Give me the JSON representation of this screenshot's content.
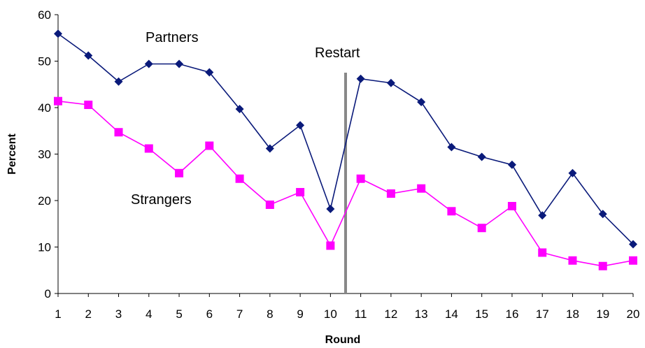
{
  "chart_data": {
    "type": "line",
    "xlabel": "Round",
    "ylabel": "Percent",
    "ylim": [
      0,
      60
    ],
    "y_ticks": [
      0,
      10,
      20,
      30,
      40,
      50,
      60
    ],
    "grid": false,
    "x": [
      1,
      2,
      3,
      4,
      5,
      6,
      7,
      8,
      9,
      10,
      11,
      12,
      13,
      14,
      15,
      16,
      17,
      18,
      19,
      20
    ],
    "series": [
      {
        "name": "Partners",
        "color": "#0a1a7a",
        "marker": "diamond",
        "values": [
          55.9,
          51.2,
          45.6,
          49.4,
          49.4,
          47.6,
          39.7,
          31.2,
          36.2,
          18.2,
          46.2,
          45.3,
          41.2,
          31.5,
          29.4,
          27.7,
          16.8,
          25.9,
          17.1,
          10.6
        ]
      },
      {
        "name": "Strangers",
        "color": "#ff00ff",
        "marker": "square",
        "values": [
          41.4,
          40.6,
          34.7,
          31.2,
          25.9,
          31.8,
          24.7,
          19.1,
          21.8,
          10.3,
          24.7,
          21.5,
          22.6,
          17.7,
          14.1,
          18.8,
          8.8,
          7.1,
          5.9,
          7.1
        ]
      }
    ],
    "annotations": {
      "restart_label": "Restart",
      "restart_x": 10.5
    }
  }
}
